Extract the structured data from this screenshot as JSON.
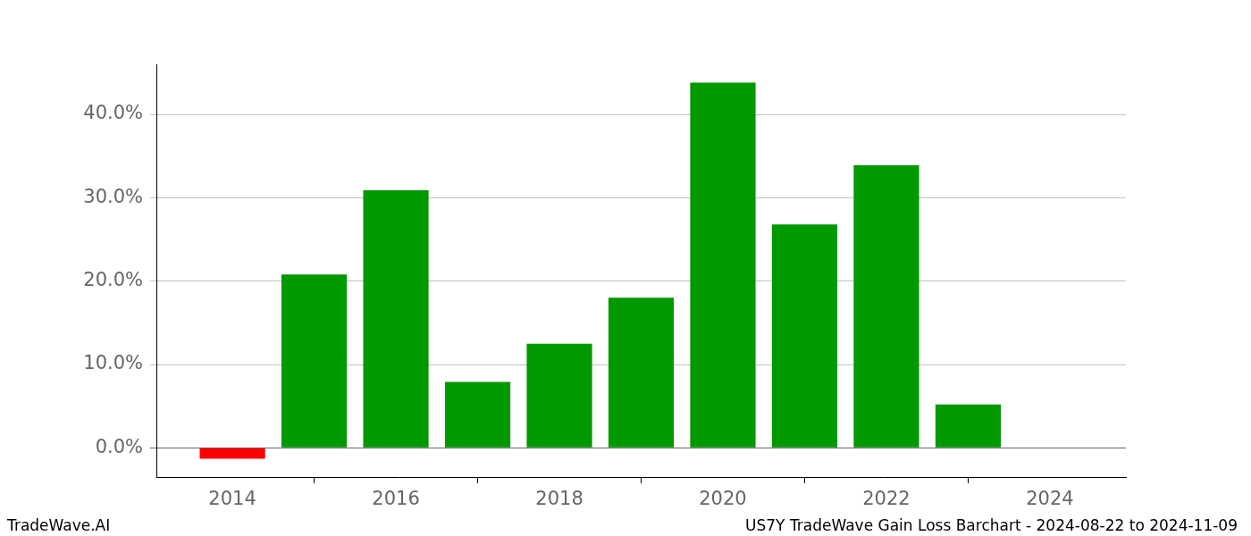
{
  "chart_data": {
    "type": "bar",
    "annotations": [
      "TradeWave.AI",
      "US7Y TradeWave Gain Loss Barchart - 2024-08-22 to 2024-11-09"
    ],
    "x": [
      2014,
      2015,
      2016,
      2017,
      2018,
      2019,
      2020,
      2021,
      2022,
      2023
    ],
    "values": [
      -1.3,
      20.8,
      30.9,
      7.9,
      12.5,
      18.0,
      43.8,
      26.8,
      33.9,
      5.2
    ],
    "colors": [
      "#ff0000",
      "#009900",
      "#009900",
      "#009900",
      "#009900",
      "#009900",
      "#009900",
      "#009900",
      "#009900",
      "#009900"
    ],
    "xlim": [
      2013.07,
      2024.93
    ],
    "xticks": [
      2014,
      2016,
      2018,
      2020,
      2022,
      2024
    ],
    "ylim": [
      -3.5,
      46.0
    ],
    "yticks": [
      {
        "value": 0,
        "label": "0.0%"
      },
      {
        "value": 10,
        "label": "10.0%"
      },
      {
        "value": 20,
        "label": "20.0%"
      },
      {
        "value": 30,
        "label": "30.0%"
      },
      {
        "value": 40,
        "label": "40.0%"
      }
    ],
    "grid": true
  }
}
